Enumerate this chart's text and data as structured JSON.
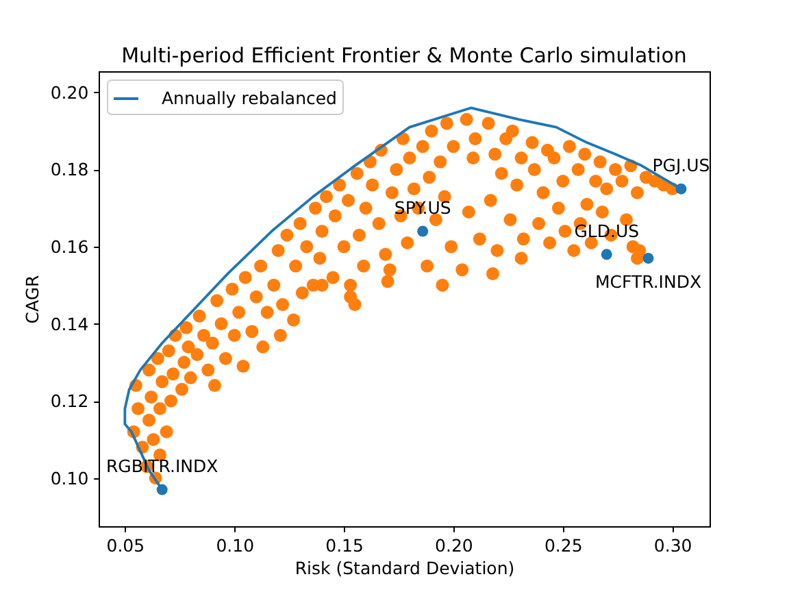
{
  "chart_data": {
    "type": "scatter",
    "title": "Multi-period Efficient Frontier & Monte Carlo simulation",
    "xlabel": "Risk (Standard Deviation)",
    "ylabel": "CAGR",
    "xlim": [
      0.038,
      0.317
    ],
    "xticks": [
      0.05,
      {
        "value": 0.1,
        "label": "0.10"
      },
      0.15,
      {
        "value": 0.2,
        "label": "0.20"
      },
      0.25,
      {
        "value": 0.3,
        "label": "0.30"
      }
    ],
    "ylim": [
      0.0875,
      0.2055
    ],
    "yticks": [
      {
        "value": 0.1,
        "label": "0.10"
      },
      0.12,
      0.14,
      0.16,
      0.18,
      {
        "value": 0.2,
        "label": "0.20"
      }
    ],
    "legend": "top left",
    "marker": "circle",
    "series": [
      {
        "color": "#ff7f0e",
        "x": [
          0.054,
          0.056,
          0.055,
          0.058,
          0.06,
          0.061,
          0.062,
          0.061,
          0.063,
          0.064,
          0.066,
          0.066,
          0.065,
          0.067,
          0.069,
          0.071,
          0.07,
          0.072,
          0.073,
          0.076,
          0.077,
          0.078,
          0.08,
          0.079,
          0.083,
          0.084,
          0.086,
          0.088,
          0.091,
          0.09,
          0.092,
          0.094,
          0.096,
          0.099,
          0.1,
          0.102,
          0.104,
          0.105,
          0.108,
          0.11,
          0.112,
          0.113,
          0.115,
          0.118,
          0.12,
          0.121,
          0.122,
          0.124,
          0.127,
          0.128,
          0.13,
          0.131,
          0.133,
          0.136,
          0.137,
          0.139,
          0.14,
          0.142,
          0.145,
          0.146,
          0.148,
          0.15,
          0.152,
          0.153,
          0.156,
          0.157,
          0.159,
          0.16,
          0.162,
          0.163,
          0.166,
          0.167,
          0.169,
          0.171,
          0.172,
          0.174,
          0.176,
          0.177,
          0.179,
          0.18,
          0.182,
          0.184,
          0.186,
          0.188,
          0.189,
          0.19,
          0.192,
          0.194,
          0.196,
          0.197,
          0.199,
          0.2,
          0.204,
          0.206,
          0.207,
          0.209,
          0.21,
          0.212,
          0.216,
          0.217,
          0.219,
          0.22,
          0.222,
          0.224,
          0.226,
          0.227,
          0.229,
          0.231,
          0.232,
          0.236,
          0.237,
          0.239,
          0.241,
          0.243,
          0.244,
          0.246,
          0.248,
          0.25,
          0.251,
          0.253,
          0.257,
          0.258,
          0.26,
          0.261,
          0.263,
          0.265,
          0.267,
          0.268,
          0.27,
          0.272,
          0.274,
          0.277,
          0.279,
          0.281,
          0.282,
          0.284,
          0.285,
          0.288,
          0.292,
          0.296,
          0.3,
          0.231,
          0.255,
          0.284,
          0.155,
          0.153,
          0.17,
          0.195,
          0.218,
          0.14
        ],
        "values": [
          0.112,
          0.118,
          0.124,
          0.108,
          0.103,
          0.115,
          0.121,
          0.128,
          0.11,
          0.1,
          0.106,
          0.118,
          0.131,
          0.125,
          0.112,
          0.12,
          0.133,
          0.127,
          0.137,
          0.123,
          0.13,
          0.139,
          0.126,
          0.134,
          0.132,
          0.142,
          0.137,
          0.128,
          0.124,
          0.135,
          0.146,
          0.14,
          0.131,
          0.149,
          0.137,
          0.143,
          0.129,
          0.152,
          0.138,
          0.147,
          0.155,
          0.134,
          0.143,
          0.15,
          0.159,
          0.137,
          0.145,
          0.163,
          0.141,
          0.155,
          0.166,
          0.148,
          0.16,
          0.15,
          0.17,
          0.157,
          0.164,
          0.173,
          0.152,
          0.168,
          0.176,
          0.16,
          0.172,
          0.15,
          0.179,
          0.163,
          0.155,
          0.17,
          0.182,
          0.176,
          0.166,
          0.185,
          0.158,
          0.154,
          0.174,
          0.18,
          0.168,
          0.188,
          0.161,
          0.183,
          0.175,
          0.17,
          0.186,
          0.155,
          0.178,
          0.19,
          0.167,
          0.182,
          0.173,
          0.192,
          0.16,
          0.186,
          0.154,
          0.193,
          0.169,
          0.183,
          0.188,
          0.162,
          0.192,
          0.172,
          0.184,
          0.159,
          0.179,
          0.188,
          0.167,
          0.19,
          0.176,
          0.183,
          0.162,
          0.187,
          0.18,
          0.166,
          0.174,
          0.185,
          0.161,
          0.183,
          0.17,
          0.177,
          0.164,
          0.186,
          0.18,
          0.166,
          0.184,
          0.171,
          0.161,
          0.177,
          0.182,
          0.169,
          0.175,
          0.163,
          0.18,
          0.177,
          0.167,
          0.181,
          0.16,
          0.174,
          0.159,
          0.178,
          0.177,
          0.176,
          0.175,
          0.157,
          0.159,
          0.157,
          0.145,
          0.147,
          0.151,
          0.15,
          0.153,
          0.15
        ]
      },
      {
        "type": "line",
        "name": "Annually rebalanced",
        "color": "#1f77b4",
        "marker": "none",
        "x": [
          0.067,
          0.061,
          0.053,
          0.05,
          0.05,
          0.052,
          0.057,
          0.067,
          0.082,
          0.097,
          0.117,
          0.136,
          0.155,
          0.18,
          0.208,
          0.23,
          0.247,
          0.261,
          0.274,
          0.286,
          0.304
        ],
        "values": [
          0.097,
          0.102,
          0.112,
          0.114,
          0.118,
          0.123,
          0.128,
          0.135,
          0.144,
          0.153,
          0.164,
          0.173,
          0.181,
          0.191,
          0.196,
          0.193,
          0.191,
          0.187,
          0.184,
          0.181,
          0.175
        ]
      },
      {
        "color": "#1f77b4",
        "x": [
          0.067,
          0.186,
          0.27,
          0.289,
          0.304
        ],
        "values": [
          0.097,
          0.164,
          0.158,
          0.157,
          0.175
        ]
      }
    ],
    "annotations": [
      {
        "text": "RGBITR.INDX",
        "x": 0.067,
        "y": 0.097
      },
      {
        "text": "SPY.US",
        "x": 0.186,
        "y": 0.164
      },
      {
        "text": "GLD.US",
        "x": 0.27,
        "y": 0.158
      },
      {
        "text": "MCFTR.INDX",
        "x": 0.289,
        "y": 0.157
      },
      {
        "text": "PGJ.US",
        "x": 0.304,
        "y": 0.175
      }
    ]
  }
}
